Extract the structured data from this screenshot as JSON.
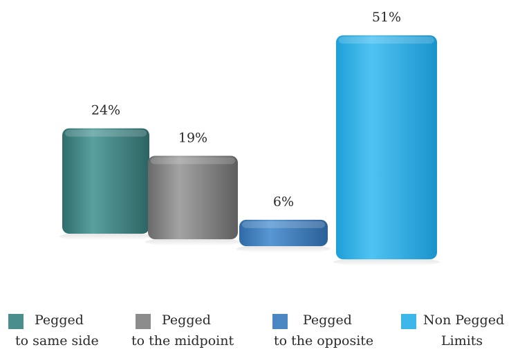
{
  "chart_data": {
    "type": "bar",
    "categories": [
      "Pegged to same side",
      "Pegged to the midpoint",
      "Pegged to the opposite",
      "Non Pegged Limits"
    ],
    "values": [
      24,
      19,
      6,
      51
    ],
    "data_labels": [
      "24%",
      "19%",
      "6%",
      "51%"
    ],
    "ylim": [
      0,
      55
    ],
    "grid": false,
    "legend_position": "bottom"
  },
  "legend": [
    {
      "line1": "Pegged",
      "line2": "to same side",
      "color": "#4a8f8e"
    },
    {
      "line1": "Pegged",
      "line2": "to the midpoint",
      "color": "#8c8c8c"
    },
    {
      "line1": "Pegged",
      "line2": "to the opposite",
      "color": "#4a86c2"
    },
    {
      "line1": "Non Pegged",
      "line2": "Limits",
      "color": "#3db7ea"
    }
  ]
}
